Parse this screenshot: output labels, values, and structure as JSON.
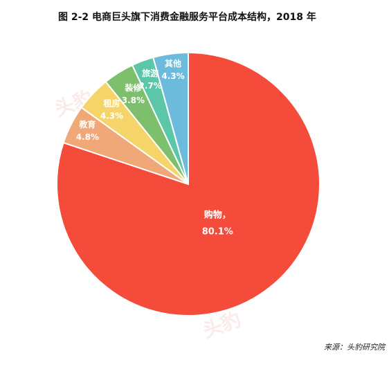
{
  "title": "图  2-2  电商巨头旗下消费金融服务平台成本结构，2018 年",
  "source": "来源：头豹研究院",
  "watermark": "头豹",
  "chart_data": {
    "type": "pie",
    "title": "图  2-2  电商巨头旗下消费金融服务平台成本结构，2018 年",
    "start_angle_deg": 0,
    "direction": "clockwise",
    "slices": [
      {
        "label": "购物，",
        "value": 80.1,
        "value_label": "80.1%",
        "color": "#f44b3a"
      },
      {
        "label": "教育",
        "value": 4.8,
        "value_label": "4.8%",
        "color": "#f0a878"
      },
      {
        "label": "租房",
        "value": 4.3,
        "value_label": "4.3%",
        "color": "#f5d56a"
      },
      {
        "label": "装修",
        "value": 3.8,
        "value_label": "3.8%",
        "color": "#7dbf6c"
      },
      {
        "label": "旅游",
        "value": 2.7,
        "value_label": "2.7%",
        "color": "#5cc7a8"
      },
      {
        "label": "其他",
        "value": 4.3,
        "value_label": "4.3%",
        "color": "#6dbbdc"
      }
    ]
  }
}
